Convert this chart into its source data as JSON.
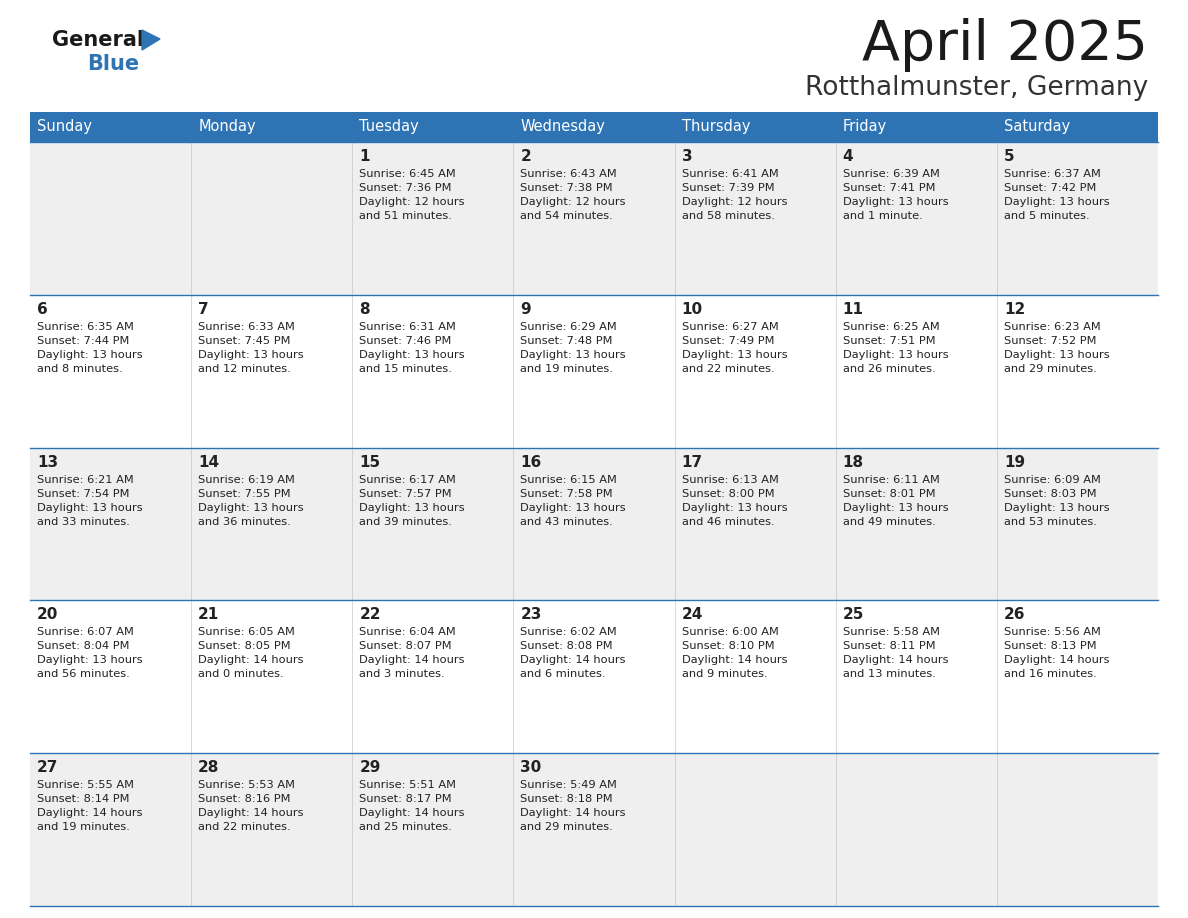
{
  "title": "April 2025",
  "subtitle": "Rotthalmunster, Germany",
  "days_of_week": [
    "Sunday",
    "Monday",
    "Tuesday",
    "Wednesday",
    "Thursday",
    "Friday",
    "Saturday"
  ],
  "header_bg": "#2E74B5",
  "header_text": "#FFFFFF",
  "row_bg_light": "#EFEFEF",
  "row_bg_white": "#FFFFFF",
  "cell_text": "#222222",
  "border_color": "#2E74B5",
  "title_color": "#1a1a1a",
  "subtitle_color": "#333333",
  "logo_general_color": "#1a1a1a",
  "logo_blue_color": "#2E74B5",
  "calendar": [
    [
      {
        "day": "",
        "sunrise": "",
        "sunset": "",
        "daylight": ""
      },
      {
        "day": "",
        "sunrise": "",
        "sunset": "",
        "daylight": ""
      },
      {
        "day": "1",
        "sunrise": "Sunrise: 6:45 AM",
        "sunset": "Sunset: 7:36 PM",
        "daylight": "Daylight: 12 hours\nand 51 minutes."
      },
      {
        "day": "2",
        "sunrise": "Sunrise: 6:43 AM",
        "sunset": "Sunset: 7:38 PM",
        "daylight": "Daylight: 12 hours\nand 54 minutes."
      },
      {
        "day": "3",
        "sunrise": "Sunrise: 6:41 AM",
        "sunset": "Sunset: 7:39 PM",
        "daylight": "Daylight: 12 hours\nand 58 minutes."
      },
      {
        "day": "4",
        "sunrise": "Sunrise: 6:39 AM",
        "sunset": "Sunset: 7:41 PM",
        "daylight": "Daylight: 13 hours\nand 1 minute."
      },
      {
        "day": "5",
        "sunrise": "Sunrise: 6:37 AM",
        "sunset": "Sunset: 7:42 PM",
        "daylight": "Daylight: 13 hours\nand 5 minutes."
      }
    ],
    [
      {
        "day": "6",
        "sunrise": "Sunrise: 6:35 AM",
        "sunset": "Sunset: 7:44 PM",
        "daylight": "Daylight: 13 hours\nand 8 minutes."
      },
      {
        "day": "7",
        "sunrise": "Sunrise: 6:33 AM",
        "sunset": "Sunset: 7:45 PM",
        "daylight": "Daylight: 13 hours\nand 12 minutes."
      },
      {
        "day": "8",
        "sunrise": "Sunrise: 6:31 AM",
        "sunset": "Sunset: 7:46 PM",
        "daylight": "Daylight: 13 hours\nand 15 minutes."
      },
      {
        "day": "9",
        "sunrise": "Sunrise: 6:29 AM",
        "sunset": "Sunset: 7:48 PM",
        "daylight": "Daylight: 13 hours\nand 19 minutes."
      },
      {
        "day": "10",
        "sunrise": "Sunrise: 6:27 AM",
        "sunset": "Sunset: 7:49 PM",
        "daylight": "Daylight: 13 hours\nand 22 minutes."
      },
      {
        "day": "11",
        "sunrise": "Sunrise: 6:25 AM",
        "sunset": "Sunset: 7:51 PM",
        "daylight": "Daylight: 13 hours\nand 26 minutes."
      },
      {
        "day": "12",
        "sunrise": "Sunrise: 6:23 AM",
        "sunset": "Sunset: 7:52 PM",
        "daylight": "Daylight: 13 hours\nand 29 minutes."
      }
    ],
    [
      {
        "day": "13",
        "sunrise": "Sunrise: 6:21 AM",
        "sunset": "Sunset: 7:54 PM",
        "daylight": "Daylight: 13 hours\nand 33 minutes."
      },
      {
        "day": "14",
        "sunrise": "Sunrise: 6:19 AM",
        "sunset": "Sunset: 7:55 PM",
        "daylight": "Daylight: 13 hours\nand 36 minutes."
      },
      {
        "day": "15",
        "sunrise": "Sunrise: 6:17 AM",
        "sunset": "Sunset: 7:57 PM",
        "daylight": "Daylight: 13 hours\nand 39 minutes."
      },
      {
        "day": "16",
        "sunrise": "Sunrise: 6:15 AM",
        "sunset": "Sunset: 7:58 PM",
        "daylight": "Daylight: 13 hours\nand 43 minutes."
      },
      {
        "day": "17",
        "sunrise": "Sunrise: 6:13 AM",
        "sunset": "Sunset: 8:00 PM",
        "daylight": "Daylight: 13 hours\nand 46 minutes."
      },
      {
        "day": "18",
        "sunrise": "Sunrise: 6:11 AM",
        "sunset": "Sunset: 8:01 PM",
        "daylight": "Daylight: 13 hours\nand 49 minutes."
      },
      {
        "day": "19",
        "sunrise": "Sunrise: 6:09 AM",
        "sunset": "Sunset: 8:03 PM",
        "daylight": "Daylight: 13 hours\nand 53 minutes."
      }
    ],
    [
      {
        "day": "20",
        "sunrise": "Sunrise: 6:07 AM",
        "sunset": "Sunset: 8:04 PM",
        "daylight": "Daylight: 13 hours\nand 56 minutes."
      },
      {
        "day": "21",
        "sunrise": "Sunrise: 6:05 AM",
        "sunset": "Sunset: 8:05 PM",
        "daylight": "Daylight: 14 hours\nand 0 minutes."
      },
      {
        "day": "22",
        "sunrise": "Sunrise: 6:04 AM",
        "sunset": "Sunset: 8:07 PM",
        "daylight": "Daylight: 14 hours\nand 3 minutes."
      },
      {
        "day": "23",
        "sunrise": "Sunrise: 6:02 AM",
        "sunset": "Sunset: 8:08 PM",
        "daylight": "Daylight: 14 hours\nand 6 minutes."
      },
      {
        "day": "24",
        "sunrise": "Sunrise: 6:00 AM",
        "sunset": "Sunset: 8:10 PM",
        "daylight": "Daylight: 14 hours\nand 9 minutes."
      },
      {
        "day": "25",
        "sunrise": "Sunrise: 5:58 AM",
        "sunset": "Sunset: 8:11 PM",
        "daylight": "Daylight: 14 hours\nand 13 minutes."
      },
      {
        "day": "26",
        "sunrise": "Sunrise: 5:56 AM",
        "sunset": "Sunset: 8:13 PM",
        "daylight": "Daylight: 14 hours\nand 16 minutes."
      }
    ],
    [
      {
        "day": "27",
        "sunrise": "Sunrise: 5:55 AM",
        "sunset": "Sunset: 8:14 PM",
        "daylight": "Daylight: 14 hours\nand 19 minutes."
      },
      {
        "day": "28",
        "sunrise": "Sunrise: 5:53 AM",
        "sunset": "Sunset: 8:16 PM",
        "daylight": "Daylight: 14 hours\nand 22 minutes."
      },
      {
        "day": "29",
        "sunrise": "Sunrise: 5:51 AM",
        "sunset": "Sunset: 8:17 PM",
        "daylight": "Daylight: 14 hours\nand 25 minutes."
      },
      {
        "day": "30",
        "sunrise": "Sunrise: 5:49 AM",
        "sunset": "Sunset: 8:18 PM",
        "daylight": "Daylight: 14 hours\nand 29 minutes."
      },
      {
        "day": "",
        "sunrise": "",
        "sunset": "",
        "daylight": ""
      },
      {
        "day": "",
        "sunrise": "",
        "sunset": "",
        "daylight": ""
      },
      {
        "day": "",
        "sunrise": "",
        "sunset": "",
        "daylight": ""
      }
    ]
  ]
}
